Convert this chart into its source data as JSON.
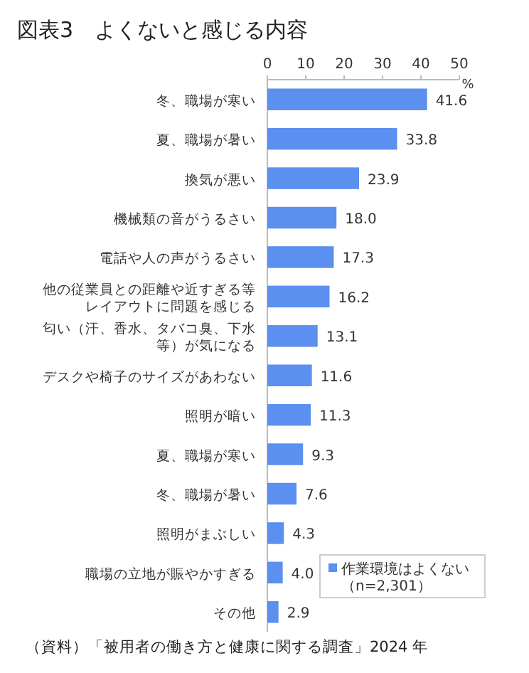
{
  "chart_data": {
    "type": "bar",
    "orientation": "horizontal",
    "title": "図表3　よくないと感じる内容",
    "categories": [
      "冬、職場が寒い",
      "夏、職場が暑い",
      "換気が悪い",
      "機械類の音がうるさい",
      "電話や人の声がうるさい",
      "他の従業員との距離や近すぎる等レイアウトに問題を感じる",
      "匂い（汗、香水、タバコ臭、下水等）が気になる",
      "デスクや椅子のサイズがあわない",
      "照明が暗い",
      "夏、職場が寒い",
      "冬、職場が暑い",
      "照明がまぶしい",
      "職場の立地が賑やかすぎる",
      "その他"
    ],
    "series": [
      {
        "name": "作業環境はよくない（n=2,301）",
        "color": "#5b8ff0",
        "values": [
          41.6,
          33.8,
          23.9,
          18.0,
          17.3,
          16.2,
          13.1,
          11.6,
          11.3,
          9.3,
          7.6,
          4.3,
          4.0,
          2.9
        ],
        "value_labels": [
          "41.6",
          "33.8",
          "23.9",
          "18.0",
          "17.3",
          "16.2",
          "13.1",
          "11.6",
          "11.3",
          "9.3",
          "7.6",
          "4.3",
          "4.0",
          "2.9"
        ]
      }
    ],
    "xlim": [
      0,
      50
    ],
    "xticks": [
      0,
      10,
      20,
      30,
      40,
      50
    ],
    "xlabel": "%",
    "grid": false,
    "legend": "bottom right",
    "annotations": [
      "（資料）「被用者の働き方と健康に関する調査」2024 年"
    ]
  }
}
